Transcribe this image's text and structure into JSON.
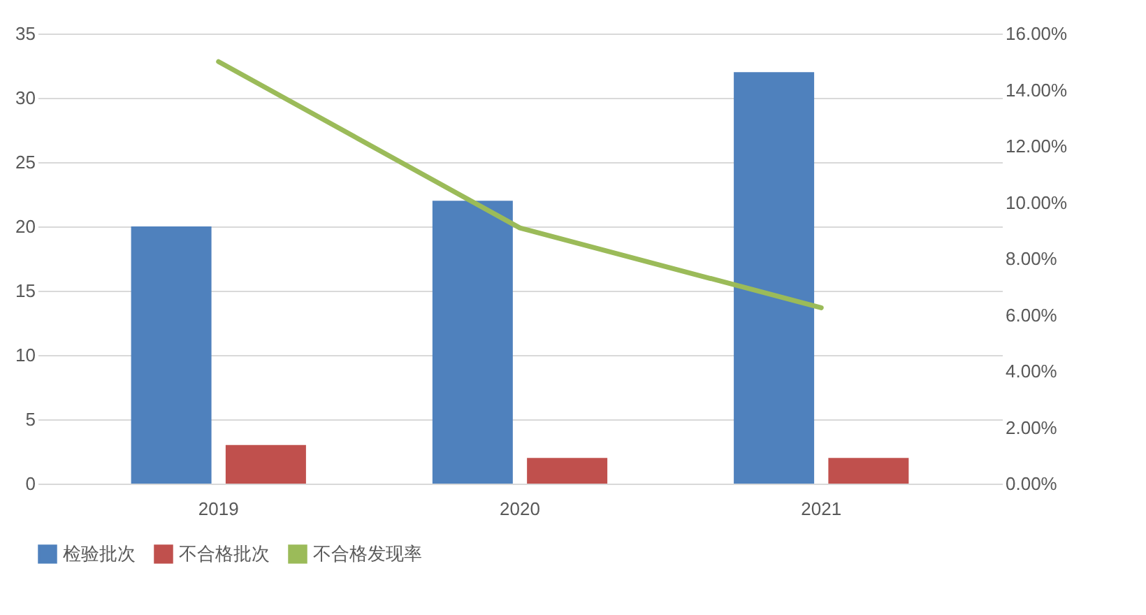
{
  "chart_data": {
    "type": "bar",
    "categories": [
      "2019",
      "2020",
      "2021"
    ],
    "series": [
      {
        "name": "检验批次",
        "color": "#4f81bd",
        "values": [
          20,
          22,
          32
        ]
      },
      {
        "name": "不合格批次",
        "color": "#c0504d",
        "values": [
          3,
          2,
          2
        ]
      },
      {
        "name": "不合格发现率",
        "type": "line",
        "axis": "y2",
        "color": "#9bbb59",
        "values": [
          15,
          9.09,
          6.25
        ]
      }
    ],
    "ylim": [
      0,
      35
    ],
    "yticks": [
      0,
      5,
      10,
      15,
      20,
      25,
      30,
      35
    ],
    "y2lim": [
      0,
      16
    ],
    "y2ticks": [
      {
        "value": 0,
        "label": "0.00%"
      },
      {
        "value": 2,
        "label": "2.00%"
      },
      {
        "value": 4,
        "label": "4.00%"
      },
      {
        "value": 6,
        "label": "6.00%"
      },
      {
        "value": 8,
        "label": "8.00%"
      },
      {
        "value": 10,
        "label": "10.00%"
      },
      {
        "value": 12,
        "label": "12.00%"
      },
      {
        "value": 14,
        "label": "14.00%"
      },
      {
        "value": 16,
        "label": "16.00%"
      }
    ],
    "grid": "y",
    "legend": "bottom"
  }
}
